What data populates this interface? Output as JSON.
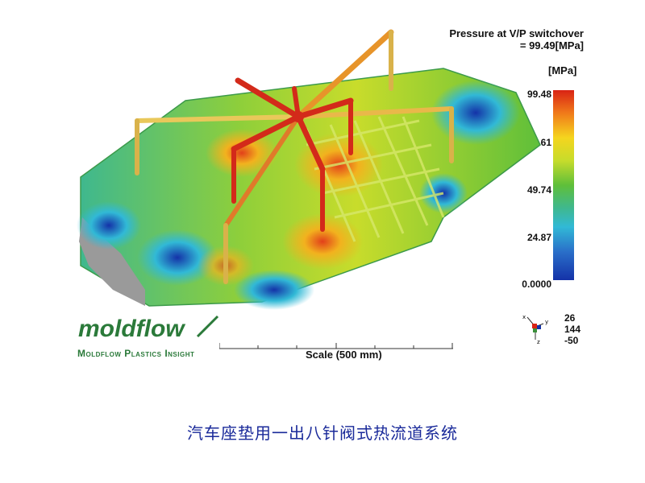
{
  "result": {
    "title_line1": "Pressure at V/P switchover",
    "title_line2": "= 99.49[MPa]",
    "unit": "[MPa]"
  },
  "legend": {
    "ticks": [
      "99.48",
      "74.61",
      "49.74",
      "24.87",
      "0.0000"
    ],
    "colors": [
      "#d92314",
      "#f5d51e",
      "#5fbf3a",
      "#31b9d6",
      "#1432a8"
    ]
  },
  "orientation": {
    "values": [
      "26",
      "144",
      "-50"
    ],
    "axis_labels": [
      "x",
      "y",
      "z"
    ]
  },
  "branding": {
    "logo_text": "moldflow",
    "product": "Moldflow Plastics Insight"
  },
  "scale": {
    "label": "Scale (500 mm)"
  },
  "caption": "汽车座垫用一出八针阀式热流道系统",
  "model": {
    "description_icon": "hot-runner-part-contour",
    "accent": "#2b7a3a"
  }
}
